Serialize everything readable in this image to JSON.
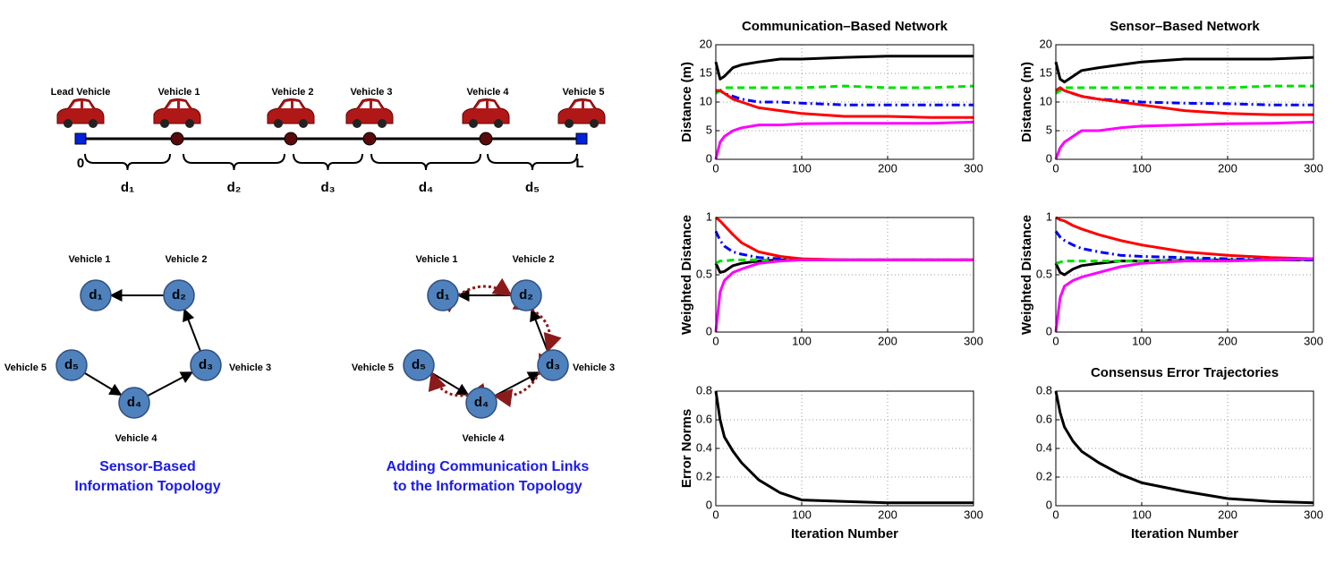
{
  "diagram": {
    "platoon": {
      "vehicles": [
        "Lead Vehicle",
        "Vehicle 1",
        "Vehicle 2",
        "Vehicle 3",
        "Vehicle 4",
        "Vehicle 5"
      ],
      "origin": "0",
      "end": "L",
      "spacings": [
        "d₁",
        "d₂",
        "d₃",
        "d₄",
        "d₅"
      ]
    },
    "topologies": [
      {
        "nodes": [
          "d₁",
          "d₂",
          "d₃",
          "d₄",
          "d₅"
        ],
        "vehicles": [
          "Vehicle 1",
          "Vehicle 2",
          "Vehicle 3",
          "Vehicle 4",
          "Vehicle 5"
        ],
        "caption": [
          "Sensor-Based",
          "Information Topology"
        ]
      },
      {
        "nodes": [
          "d₁",
          "d₂",
          "d₃",
          "d₄",
          "d₅"
        ],
        "vehicles": [
          "Vehicle 1",
          "Vehicle 2",
          "Vehicle 3",
          "Vehicle 4",
          "Vehicle 5"
        ],
        "caption": [
          "Adding Communication Links",
          "to the Information Topology"
        ]
      }
    ]
  },
  "chart_data": [
    {
      "type": "line",
      "title": "Communication–Based Network",
      "y_label": "Distance (m)",
      "grid": true,
      "x": [
        0,
        5,
        10,
        20,
        30,
        50,
        75,
        100,
        150,
        200,
        250,
        300
      ],
      "xlim": [
        0,
        300
      ],
      "xticks": [
        0,
        100,
        200,
        300
      ],
      "ylim": [
        0,
        20
      ],
      "yticks": [
        0,
        5,
        10,
        15,
        20
      ],
      "series": [
        {
          "color": "#000000",
          "style": "solid",
          "values": [
            17,
            14,
            14.5,
            16,
            16.5,
            17,
            17.5,
            17.5,
            17.8,
            18,
            18,
            18
          ]
        },
        {
          "color": "#00e000",
          "style": "dash",
          "values": [
            11.5,
            12,
            12.5,
            12.5,
            12.5,
            12.5,
            12.5,
            12.5,
            12.8,
            12.5,
            12.5,
            12.8
          ]
        },
        {
          "color": "#0000ff",
          "style": "dashdot",
          "values": [
            12,
            12,
            11.5,
            11,
            10.5,
            10,
            10,
            9.8,
            9.5,
            9.5,
            9.5,
            9.5
          ]
        },
        {
          "color": "#ff0000",
          "style": "solid",
          "values": [
            12,
            12,
            11.5,
            10.5,
            10,
            9,
            8.5,
            8,
            7.5,
            7.5,
            7.3,
            7.3
          ]
        },
        {
          "color": "#ff00ff",
          "style": "solid",
          "values": [
            0,
            3,
            4,
            5,
            5.5,
            6,
            6,
            6.2,
            6.3,
            6.3,
            6.3,
            6.5
          ]
        }
      ]
    },
    {
      "type": "line",
      "title": "Sensor–Based Network",
      "y_label": "Distance (m)",
      "grid": true,
      "x": [
        0,
        5,
        10,
        20,
        30,
        50,
        75,
        100,
        150,
        200,
        250,
        300
      ],
      "xlim": [
        0,
        300
      ],
      "xticks": [
        0,
        100,
        200,
        300
      ],
      "ylim": [
        0,
        20
      ],
      "yticks": [
        0,
        5,
        10,
        15,
        20
      ],
      "series": [
        {
          "color": "#000000",
          "style": "solid",
          "values": [
            17,
            14,
            13.5,
            14.5,
            15.5,
            16,
            16.5,
            17,
            17.5,
            17.5,
            17.5,
            17.8
          ]
        },
        {
          "color": "#00e000",
          "style": "dash",
          "values": [
            11.5,
            12,
            12.5,
            12.5,
            12.5,
            12.5,
            12.5,
            12.5,
            12.5,
            12.5,
            12.8,
            12.8
          ]
        },
        {
          "color": "#0000ff",
          "style": "dashdot",
          "values": [
            12,
            12.5,
            12,
            11.5,
            11,
            10.5,
            10.3,
            10,
            9.8,
            9.7,
            9.5,
            9.5
          ]
        },
        {
          "color": "#ff0000",
          "style": "solid",
          "values": [
            12,
            12.5,
            12,
            11.5,
            11,
            10.5,
            10,
            9.5,
            8.5,
            8,
            7.8,
            7.8
          ]
        },
        {
          "color": "#ff00ff",
          "style": "solid",
          "values": [
            0,
            2,
            3,
            4,
            5,
            5,
            5.5,
            5.8,
            6,
            6.2,
            6.3,
            6.5
          ]
        }
      ]
    },
    {
      "type": "line",
      "y_label": "Weighted Distance",
      "grid": true,
      "x": [
        0,
        5,
        10,
        20,
        30,
        50,
        75,
        100,
        150,
        200,
        250,
        300
      ],
      "xlim": [
        0,
        300
      ],
      "xticks": [
        0,
        100,
        200,
        300
      ],
      "ylim": [
        0,
        1
      ],
      "yticks": [
        0,
        0.5,
        1
      ],
      "series": [
        {
          "color": "#000000",
          "style": "solid",
          "values": [
            0.6,
            0.52,
            0.53,
            0.58,
            0.6,
            0.62,
            0.63,
            0.63,
            0.63,
            0.63,
            0.63,
            0.63
          ]
        },
        {
          "color": "#00e000",
          "style": "dash",
          "values": [
            0.6,
            0.62,
            0.62,
            0.63,
            0.63,
            0.63,
            0.63,
            0.63,
            0.63,
            0.63,
            0.63,
            0.63
          ]
        },
        {
          "color": "#0000ff",
          "style": "dashdot",
          "values": [
            0.88,
            0.8,
            0.75,
            0.7,
            0.68,
            0.65,
            0.64,
            0.63,
            0.63,
            0.63,
            0.63,
            0.63
          ]
        },
        {
          "color": "#ff0000",
          "style": "solid",
          "values": [
            1,
            0.97,
            0.93,
            0.85,
            0.78,
            0.7,
            0.66,
            0.64,
            0.63,
            0.63,
            0.63,
            0.63
          ]
        },
        {
          "color": "#ff00ff",
          "style": "solid",
          "values": [
            0,
            0.35,
            0.45,
            0.52,
            0.55,
            0.6,
            0.62,
            0.63,
            0.63,
            0.63,
            0.63,
            0.63
          ]
        }
      ]
    },
    {
      "type": "line",
      "y_label": "Weighted Distance",
      "grid": true,
      "x": [
        0,
        5,
        10,
        20,
        30,
        50,
        75,
        100,
        150,
        200,
        250,
        300
      ],
      "xlim": [
        0,
        300
      ],
      "xticks": [
        0,
        100,
        200,
        300
      ],
      "ylim": [
        0,
        1
      ],
      "yticks": [
        0,
        0.5,
        1
      ],
      "series": [
        {
          "color": "#000000",
          "style": "solid",
          "values": [
            0.6,
            0.52,
            0.5,
            0.55,
            0.58,
            0.6,
            0.62,
            0.62,
            0.63,
            0.63,
            0.63,
            0.63
          ]
        },
        {
          "color": "#00e000",
          "style": "dash",
          "values": [
            0.6,
            0.61,
            0.62,
            0.62,
            0.62,
            0.62,
            0.62,
            0.62,
            0.63,
            0.63,
            0.63,
            0.63
          ]
        },
        {
          "color": "#0000ff",
          "style": "dashdot",
          "values": [
            0.88,
            0.83,
            0.8,
            0.76,
            0.73,
            0.7,
            0.67,
            0.66,
            0.65,
            0.64,
            0.63,
            0.63
          ]
        },
        {
          "color": "#ff0000",
          "style": "solid",
          "values": [
            1,
            0.98,
            0.97,
            0.93,
            0.9,
            0.85,
            0.8,
            0.76,
            0.7,
            0.67,
            0.65,
            0.64
          ]
        },
        {
          "color": "#ff00ff",
          "style": "solid",
          "values": [
            0,
            0.3,
            0.4,
            0.45,
            0.48,
            0.52,
            0.57,
            0.6,
            0.62,
            0.62,
            0.63,
            0.64
          ]
        }
      ]
    },
    {
      "type": "line",
      "y_label": "Error Norms",
      "x_label": "Iteration Number",
      "grid": true,
      "x": [
        0,
        5,
        10,
        20,
        30,
        50,
        75,
        100,
        150,
        200,
        250,
        300
      ],
      "xlim": [
        0,
        300
      ],
      "xticks": [
        0,
        100,
        200,
        300
      ],
      "ylim": [
        0,
        0.8
      ],
      "yticks": [
        0,
        0.2,
        0.4,
        0.6,
        0.8
      ],
      "series": [
        {
          "color": "#000000",
          "style": "solid",
          "values": [
            0.8,
            0.6,
            0.48,
            0.38,
            0.3,
            0.18,
            0.09,
            0.04,
            0.03,
            0.02,
            0.02,
            0.02
          ]
        }
      ]
    },
    {
      "type": "line",
      "title": "Consensus Error Trajectories",
      "x_label": "Iteration Number",
      "grid": true,
      "x": [
        0,
        5,
        10,
        20,
        30,
        50,
        75,
        100,
        150,
        200,
        250,
        300
      ],
      "xlim": [
        0,
        300
      ],
      "xticks": [
        0,
        100,
        200,
        300
      ],
      "ylim": [
        0,
        0.8
      ],
      "yticks": [
        0,
        0.2,
        0.4,
        0.6,
        0.8
      ],
      "series": [
        {
          "color": "#000000",
          "style": "solid",
          "values": [
            0.8,
            0.65,
            0.55,
            0.45,
            0.38,
            0.3,
            0.22,
            0.16,
            0.1,
            0.05,
            0.03,
            0.02
          ]
        }
      ]
    }
  ]
}
